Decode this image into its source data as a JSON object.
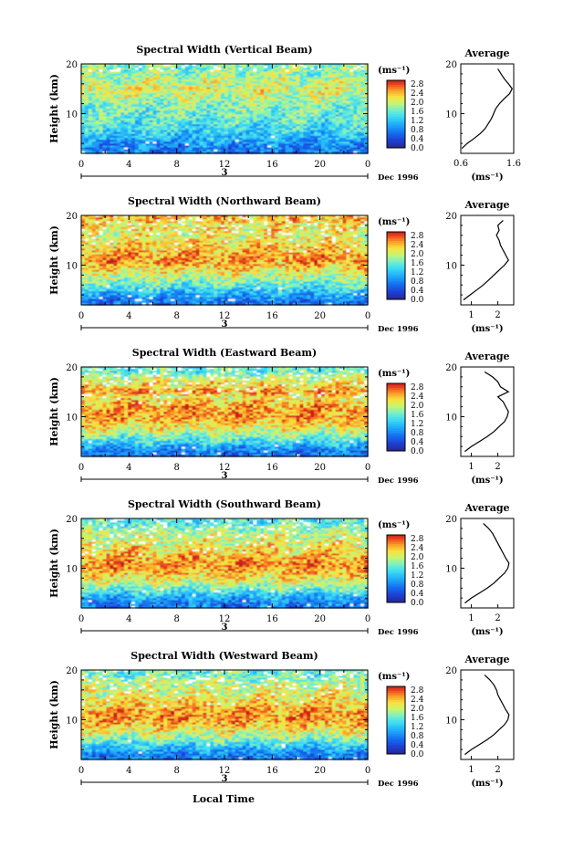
{
  "figure": {
    "xlabel": "Local Time",
    "date_label": "Dec 1996",
    "day_label": "3",
    "ylabel": "Height (km)",
    "cb_unit": "(ms⁻¹)",
    "avg_title": "Average",
    "avg_xlabel": "(ms⁻¹)"
  },
  "chart_data": [
    {
      "type": "heatmap",
      "title": "Spectral Width (Vertical Beam)",
      "xlabel": "Local Time",
      "ylabel": "Height (km)",
      "xlim": [
        0,
        24
      ],
      "ylim": [
        2,
        20
      ],
      "xticks": [
        "0",
        "4",
        "8",
        "12",
        "16",
        "20",
        "0"
      ],
      "yticks": [
        "10",
        "20"
      ],
      "colorbar": {
        "unit": "(ms⁻¹)",
        "range": [
          0,
          3.0
        ],
        "ticks": [
          "2.8",
          "2.4",
          "2.0",
          "1.6",
          "1.2",
          "0.8",
          "0.4",
          "0.0"
        ]
      },
      "profile": {
        "title": "Average",
        "xlabel": "(ms⁻¹)",
        "xlim": [
          0.6,
          1.6
        ],
        "xticks": [
          "0.6",
          "1.6"
        ],
        "heights": [
          3,
          4,
          5,
          6,
          7,
          8,
          9,
          10,
          11,
          12,
          13,
          14,
          15,
          16,
          17,
          18,
          19
        ],
        "values": [
          0.62,
          0.72,
          0.85,
          0.97,
          1.06,
          1.12,
          1.18,
          1.22,
          1.26,
          1.33,
          1.42,
          1.52,
          1.57,
          1.5,
          1.42,
          1.36,
          1.3
        ]
      }
    },
    {
      "type": "heatmap",
      "title": "Spectral Width (Northward Beam)",
      "xlabel": "Local Time",
      "ylabel": "Height (km)",
      "xlim": [
        0,
        24
      ],
      "ylim": [
        2,
        20
      ],
      "xticks": [
        "0",
        "4",
        "8",
        "12",
        "16",
        "20",
        "0"
      ],
      "yticks": [
        "10",
        "20"
      ],
      "colorbar": {
        "unit": "(ms⁻¹)",
        "range": [
          0,
          3.0
        ],
        "ticks": [
          "2.8",
          "2.4",
          "2.0",
          "1.6",
          "1.2",
          "0.8",
          "0.4",
          "0.0"
        ]
      },
      "profile": {
        "title": "Average",
        "xlabel": "(ms⁻¹)",
        "xlim": [
          0.6,
          2.6
        ],
        "xticks": [
          "1",
          "2"
        ],
        "heights": [
          3,
          4,
          5,
          6,
          7,
          8,
          9,
          10,
          11,
          12,
          13,
          14,
          15,
          16,
          17,
          18,
          19
        ],
        "values": [
          0.7,
          0.95,
          1.2,
          1.45,
          1.65,
          1.85,
          2.05,
          2.25,
          2.4,
          2.3,
          2.2,
          2.1,
          2.05,
          1.95,
          2.05,
          2.0,
          2.2
        ]
      }
    },
    {
      "type": "heatmap",
      "title": "Spectral Width (Eastward Beam)",
      "xlabel": "Local Time",
      "ylabel": "Height (km)",
      "xlim": [
        0,
        24
      ],
      "ylim": [
        2,
        20
      ],
      "xticks": [
        "0",
        "4",
        "8",
        "12",
        "16",
        "20",
        "0"
      ],
      "yticks": [
        "10",
        "20"
      ],
      "colorbar": {
        "unit": "(ms⁻¹)",
        "range": [
          0,
          3.0
        ],
        "ticks": [
          "2.8",
          "2.4",
          "2.0",
          "1.6",
          "1.2",
          "0.8",
          "0.4",
          "0.0"
        ]
      },
      "profile": {
        "title": "Average",
        "xlabel": "(ms⁻¹)",
        "xlim": [
          0.6,
          2.6
        ],
        "xticks": [
          "1",
          "2"
        ],
        "heights": [
          3,
          4,
          5,
          6,
          7,
          8,
          9,
          10,
          11,
          12,
          13,
          14,
          15,
          16,
          17,
          18,
          19
        ],
        "values": [
          0.75,
          1.0,
          1.3,
          1.6,
          1.85,
          2.05,
          2.25,
          2.35,
          2.4,
          2.3,
          2.2,
          2.0,
          2.4,
          2.1,
          2.0,
          1.8,
          1.5
        ]
      }
    },
    {
      "type": "heatmap",
      "title": "Spectral Width (Southward Beam)",
      "xlabel": "Local Time",
      "ylabel": "Height (km)",
      "xlim": [
        0,
        24
      ],
      "ylim": [
        2,
        20
      ],
      "xticks": [
        "0",
        "4",
        "8",
        "12",
        "16",
        "20",
        "0"
      ],
      "yticks": [
        "10",
        "20"
      ],
      "colorbar": {
        "unit": "(ms⁻¹)",
        "range": [
          0,
          3.0
        ],
        "ticks": [
          "2.8",
          "2.4",
          "2.0",
          "1.6",
          "1.2",
          "0.8",
          "0.4",
          "0.0"
        ]
      },
      "profile": {
        "title": "Average",
        "xlabel": "(ms⁻¹)",
        "xlim": [
          0.6,
          2.6
        ],
        "xticks": [
          "1",
          "2"
        ],
        "heights": [
          3,
          4,
          5,
          6,
          7,
          8,
          9,
          10,
          11,
          12,
          13,
          14,
          15,
          16,
          17,
          18,
          19
        ],
        "values": [
          0.75,
          1.0,
          1.3,
          1.6,
          1.85,
          2.05,
          2.25,
          2.38,
          2.42,
          2.3,
          2.2,
          2.1,
          2.0,
          1.9,
          1.8,
          1.65,
          1.45
        ]
      }
    },
    {
      "type": "heatmap",
      "title": "Spectral Width (Westward Beam)",
      "xlabel": "Local Time",
      "ylabel": "Height (km)",
      "xlim": [
        0,
        24
      ],
      "ylim": [
        2,
        20
      ],
      "xticks": [
        "0",
        "4",
        "8",
        "12",
        "16",
        "20",
        "0"
      ],
      "yticks": [
        "10",
        "20"
      ],
      "colorbar": {
        "unit": "(ms⁻¹)",
        "range": [
          0,
          3.0
        ],
        "ticks": [
          "2.8",
          "2.4",
          "2.0",
          "1.6",
          "1.2",
          "0.8",
          "0.4",
          "0.0"
        ]
      },
      "profile": {
        "title": "Average",
        "xlabel": "(ms⁻¹)",
        "xlim": [
          0.6,
          2.6
        ],
        "xticks": [
          "1",
          "2"
        ],
        "heights": [
          3,
          4,
          5,
          6,
          7,
          8,
          9,
          10,
          11,
          12,
          13,
          14,
          15,
          16,
          17,
          18,
          19
        ],
        "values": [
          0.75,
          1.0,
          1.3,
          1.6,
          1.85,
          2.05,
          2.25,
          2.38,
          2.42,
          2.3,
          2.2,
          2.1,
          2.0,
          1.95,
          1.85,
          1.7,
          1.5
        ]
      }
    }
  ]
}
